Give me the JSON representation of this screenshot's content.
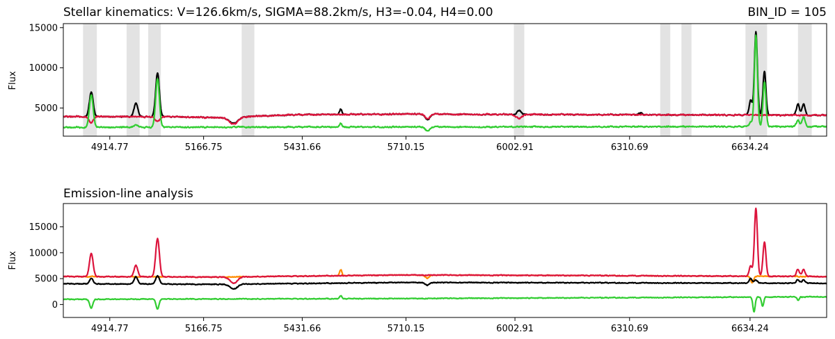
{
  "chart_data": [
    {
      "type": "line",
      "title": "Stellar kinematics: V=126.6km/s, SIGMA=88.2km/s, H3=-0.04, H4=0.00",
      "title_right": "BIN_ID = 105",
      "xlabel": "",
      "ylabel": "Flux",
      "xlim": [
        4790,
        6840
      ],
      "ylim": [
        1500,
        15500
      ],
      "x_ticks": [
        "4914.77",
        "5166.75",
        "5431.66",
        "5710.15",
        "6002.91",
        "6310.69",
        "6634.24"
      ],
      "x_tick_values": [
        4914.77,
        5166.75,
        5431.66,
        5710.15,
        6002.91,
        6310.69,
        6634.24
      ],
      "y_ticks": [
        5000,
        10000,
        15000
      ],
      "grid": false,
      "masked_regions": [
        [
          4843,
          4880
        ],
        [
          4960,
          4995
        ],
        [
          5018,
          5052
        ],
        [
          5269,
          5303
        ],
        [
          6000,
          6028
        ],
        [
          6393,
          6420
        ],
        [
          6450,
          6477
        ],
        [
          6622,
          6680
        ],
        [
          6763,
          6800
        ]
      ],
      "series": [
        {
          "color": "#000000",
          "role": "data",
          "baseline": [
            [
              4790,
              3950
            ],
            [
              5100,
              3900
            ],
            [
              5200,
              3800
            ],
            [
              5400,
              4150
            ],
            [
              5700,
              4250
            ],
            [
              6000,
              4200
            ],
            [
              6400,
              4150
            ],
            [
              6840,
              4100
            ]
          ],
          "features": [
            {
              "x": 4865,
              "height": 3000,
              "width": 5
            },
            {
              "x": 4985,
              "height": 1700,
              "width": 5
            },
            {
              "x": 5043,
              "height": 5400,
              "width": 5
            },
            {
              "x": 5248,
              "height": -800,
              "width": 12
            },
            {
              "x": 5535,
              "height": 700,
              "width": 3
            },
            {
              "x": 5768,
              "height": -700,
              "width": 6
            },
            {
              "x": 6014,
              "height": 500,
              "width": 5
            },
            {
              "x": 6340,
              "height": 200,
              "width": 5
            },
            {
              "x": 6636,
              "height": 1800,
              "width": 4
            },
            {
              "x": 6650,
              "height": 10300,
              "width": 4
            },
            {
              "x": 6673,
              "height": 5400,
              "width": 4
            },
            {
              "x": 6763,
              "height": 1400,
              "width": 4
            },
            {
              "x": 6778,
              "height": 1400,
              "width": 4
            }
          ]
        },
        {
          "color": "#dc143c",
          "role": "stellar-fit",
          "baseline": [
            [
              4790,
              3950
            ],
            [
              5100,
              3900
            ],
            [
              5200,
              3800
            ],
            [
              5400,
              4150
            ],
            [
              5700,
              4250
            ],
            [
              6000,
              4200
            ],
            [
              6400,
              4150
            ],
            [
              6840,
              4100
            ]
          ],
          "features": [
            {
              "x": 4865,
              "height": -800,
              "width": 6
            },
            {
              "x": 5043,
              "height": -600,
              "width": 6
            },
            {
              "x": 5248,
              "height": -900,
              "width": 12
            },
            {
              "x": 5768,
              "height": -600,
              "width": 6
            },
            {
              "x": 6014,
              "height": -500,
              "width": 8
            }
          ]
        },
        {
          "color": "#32cd32",
          "role": "residual-plus-emission",
          "baseline": [
            [
              4790,
              2600
            ],
            [
              6840,
              2700
            ]
          ],
          "features": [
            {
              "x": 4865,
              "height": 4000,
              "width": 5
            },
            {
              "x": 4985,
              "height": 300,
              "width": 5
            },
            {
              "x": 5043,
              "height": 6000,
              "width": 5
            },
            {
              "x": 5535,
              "height": 500,
              "width": 3
            },
            {
              "x": 5768,
              "height": -500,
              "width": 6
            },
            {
              "x": 6650,
              "height": 11300,
              "width": 4
            },
            {
              "x": 6673,
              "height": 5500,
              "width": 4
            },
            {
              "x": 6636,
              "height": 500,
              "width": 4
            },
            {
              "x": 6763,
              "height": 800,
              "width": 4
            },
            {
              "x": 6778,
              "height": 1200,
              "width": 4
            }
          ]
        }
      ]
    },
    {
      "type": "line",
      "title": "Emission-line analysis",
      "xlabel": "",
      "ylabel": "Flux",
      "xlim": [
        4790,
        6840
      ],
      "ylim": [
        -2500,
        19500
      ],
      "x_ticks": [
        "4914.77",
        "5166.75",
        "5431.66",
        "5710.15",
        "6002.91",
        "6310.69",
        "6634.24"
      ],
      "x_tick_values": [
        4914.77,
        5166.75,
        5431.66,
        5710.15,
        6002.91,
        6310.69,
        6634.24
      ],
      "y_ticks": [
        0,
        5000,
        10000,
        15000
      ],
      "grid": false,
      "series": [
        {
          "color": "#ff8c00",
          "role": "stellar-template",
          "baseline": [
            [
              4790,
              5400
            ],
            [
              5200,
              5300
            ],
            [
              5700,
              5700
            ],
            [
              6200,
              5600
            ],
            [
              6840,
              5400
            ]
          ],
          "features": [
            {
              "x": 5535,
              "height": 1200,
              "width": 3
            },
            {
              "x": 5768,
              "height": -600,
              "width": 5
            },
            {
              "x": 6640,
              "height": -1200,
              "width": 4
            }
          ]
        },
        {
          "color": "#dc143c",
          "role": "total-fit",
          "baseline": [
            [
              4790,
              5400
            ],
            [
              5200,
              5300
            ],
            [
              5700,
              5700
            ],
            [
              6200,
              5600
            ],
            [
              6840,
              5400
            ]
          ],
          "features": [
            {
              "x": 4865,
              "height": 4400,
              "width": 5
            },
            {
              "x": 4985,
              "height": 2200,
              "width": 5
            },
            {
              "x": 5043,
              "height": 7400,
              "width": 5
            },
            {
              "x": 5248,
              "height": -1200,
              "width": 10
            },
            {
              "x": 6636,
              "height": 2000,
              "width": 4
            },
            {
              "x": 6650,
              "height": 13100,
              "width": 4
            },
            {
              "x": 6673,
              "height": 6600,
              "width": 4
            },
            {
              "x": 6763,
              "height": 1400,
              "width": 4
            },
            {
              "x": 6778,
              "height": 1400,
              "width": 4
            }
          ]
        },
        {
          "color": "#000000",
          "role": "data",
          "baseline": [
            [
              4790,
              4000
            ],
            [
              5200,
              3900
            ],
            [
              5700,
              4250
            ],
            [
              6200,
              4200
            ],
            [
              6840,
              4100
            ]
          ],
          "features": [
            {
              "x": 4865,
              "height": 1000,
              "width": 5
            },
            {
              "x": 4985,
              "height": 1400,
              "width": 5
            },
            {
              "x": 5043,
              "height": 1600,
              "width": 5
            },
            {
              "x": 5248,
              "height": -900,
              "width": 10
            },
            {
              "x": 5768,
              "height": -500,
              "width": 5
            },
            {
              "x": 6636,
              "height": 900,
              "width": 4
            },
            {
              "x": 6650,
              "height": 600,
              "width": 4
            },
            {
              "x": 6763,
              "height": 700,
              "width": 4
            },
            {
              "x": 6778,
              "height": 700,
              "width": 4
            }
          ]
        },
        {
          "color": "#32cd32",
          "role": "residual",
          "baseline": [
            [
              4790,
              1000
            ],
            [
              5700,
              1150
            ],
            [
              6200,
              1300
            ],
            [
              6840,
              1500
            ]
          ],
          "features": [
            {
              "x": 4865,
              "height": -1800,
              "width": 4
            },
            {
              "x": 5043,
              "height": -1900,
              "width": 4
            },
            {
              "x": 5535,
              "height": 600,
              "width": 3
            },
            {
              "x": 6645,
              "height": -2900,
              "width": 3
            },
            {
              "x": 6668,
              "height": -1800,
              "width": 3
            },
            {
              "x": 6763,
              "height": -600,
              "width": 3
            }
          ]
        }
      ]
    }
  ]
}
